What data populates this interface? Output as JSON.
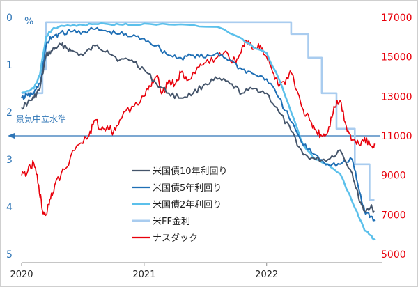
{
  "chart_data": {
    "type": "line",
    "title": "",
    "left_axis": {
      "unit_label": "%",
      "ticks": [
        "0",
        "1",
        "2",
        "3",
        "4",
        "5"
      ],
      "range": [
        0,
        5
      ],
      "inverted": true,
      "color": "#2E75B6"
    },
    "right_axis": {
      "ticks": [
        "5000",
        "7000",
        "9000",
        "11000",
        "13000",
        "15000",
        "17000"
      ],
      "range": [
        5000,
        17000
      ],
      "color": "#E8000B"
    },
    "x_axis": {
      "ticks": [
        "2020",
        "2021",
        "2022"
      ],
      "range": [
        2020.0,
        2022.9
      ]
    },
    "annotation": {
      "label": "景気中立水準",
      "value": 2.5,
      "color": "#2E75B6"
    },
    "legend_placement": "lower-center",
    "series": [
      {
        "name": "米国債10年利回り",
        "axis": "left",
        "color": "#44546A",
        "x": [
          2020.0,
          2020.05,
          2020.1,
          2020.15,
          2020.2,
          2020.25,
          2020.3,
          2020.35,
          2020.4,
          2020.5,
          2020.6,
          2020.7,
          2020.8,
          2020.9,
          2021.0,
          2021.1,
          2021.2,
          2021.3,
          2021.4,
          2021.5,
          2021.6,
          2021.7,
          2021.8,
          2021.9,
          2022.0,
          2022.1,
          2022.2,
          2022.3,
          2022.4,
          2022.5,
          2022.6,
          2022.7,
          2022.75,
          2022.8,
          2022.85,
          2022.88
        ],
        "values": [
          1.9,
          1.8,
          1.7,
          1.5,
          0.8,
          0.7,
          0.6,
          0.6,
          0.7,
          0.8,
          0.6,
          0.7,
          0.9,
          0.9,
          1.1,
          1.4,
          1.6,
          1.7,
          1.6,
          1.4,
          1.3,
          1.4,
          1.6,
          1.5,
          1.6,
          2.0,
          2.4,
          2.9,
          3.0,
          3.0,
          2.8,
          3.3,
          3.8,
          4.1,
          4.0,
          4.1
        ]
      },
      {
        "name": "米国債5年利回り",
        "axis": "left",
        "color": "#1F6FB5",
        "x": [
          2020.0,
          2020.05,
          2020.1,
          2020.15,
          2020.2,
          2020.25,
          2020.3,
          2020.4,
          2020.5,
          2020.6,
          2020.7,
          2020.8,
          2020.9,
          2021.0,
          2021.1,
          2021.2,
          2021.3,
          2021.4,
          2021.5,
          2021.6,
          2021.7,
          2021.8,
          2021.9,
          2022.0,
          2022.1,
          2022.2,
          2022.3,
          2022.4,
          2022.5,
          2022.6,
          2022.7,
          2022.75,
          2022.8,
          2022.85,
          2022.88
        ],
        "values": [
          1.7,
          1.65,
          1.6,
          1.4,
          0.6,
          0.4,
          0.35,
          0.3,
          0.3,
          0.25,
          0.3,
          0.35,
          0.4,
          0.45,
          0.6,
          0.8,
          0.85,
          0.8,
          0.85,
          0.75,
          0.9,
          1.1,
          1.2,
          1.3,
          1.7,
          2.2,
          2.7,
          2.9,
          3.1,
          3.1,
          3.0,
          3.6,
          4.1,
          4.2,
          4.3
        ]
      },
      {
        "name": "米国債2年利回り",
        "axis": "left",
        "color": "#5BC0EB",
        "x": [
          2020.0,
          2020.05,
          2020.1,
          2020.15,
          2020.2,
          2020.25,
          2020.3,
          2020.4,
          2020.5,
          2020.6,
          2020.7,
          2020.8,
          2020.9,
          2021.0,
          2021.2,
          2021.4,
          2021.6,
          2021.8,
          2021.9,
          2022.0,
          2022.1,
          2022.2,
          2022.3,
          2022.4,
          2022.5,
          2022.6,
          2022.7,
          2022.75,
          2022.8,
          2022.85,
          2022.88
        ],
        "values": [
          1.6,
          1.55,
          1.5,
          1.2,
          0.4,
          0.25,
          0.2,
          0.18,
          0.16,
          0.14,
          0.14,
          0.15,
          0.16,
          0.13,
          0.15,
          0.16,
          0.2,
          0.45,
          0.65,
          0.75,
          1.3,
          2.0,
          2.7,
          3.0,
          3.1,
          3.3,
          3.9,
          4.2,
          4.5,
          4.6,
          4.7
        ]
      },
      {
        "name": "米FF金利",
        "axis": "left",
        "color": "#A9CCEF",
        "x": [
          2020.0,
          2020.17,
          2020.17,
          2020.2,
          2020.2,
          2022.2,
          2022.2,
          2022.34,
          2022.34,
          2022.45,
          2022.45,
          2022.57,
          2022.57,
          2022.72,
          2022.72,
          2022.84,
          2022.84,
          2022.88
        ],
        "values": [
          1.6,
          1.6,
          1.1,
          1.1,
          0.1,
          0.1,
          0.35,
          0.35,
          0.85,
          0.85,
          1.6,
          1.6,
          2.35,
          2.35,
          3.1,
          3.1,
          3.85,
          3.85
        ]
      },
      {
        "name": "ナスダック",
        "axis": "right",
        "color": "#E8000B",
        "x": [
          2020.0,
          2020.05,
          2020.1,
          2020.14,
          2020.17,
          2020.2,
          2020.23,
          2020.27,
          2020.35,
          2020.45,
          2020.55,
          2020.6,
          2020.65,
          2020.7,
          2020.75,
          2020.8,
          2020.9,
          2021.0,
          2021.05,
          2021.1,
          2021.15,
          2021.2,
          2021.25,
          2021.3,
          2021.35,
          2021.45,
          2021.5,
          2021.6,
          2021.65,
          2021.75,
          2021.8,
          2021.85,
          2021.9,
          2021.95,
          2022.0,
          2022.05,
          2022.1,
          2022.15,
          2022.2,
          2022.3,
          2022.35,
          2022.4,
          2022.45,
          2022.5,
          2022.55,
          2022.6,
          2022.65,
          2022.7,
          2022.75,
          2022.8,
          2022.85,
          2022.88
        ],
        "values": [
          9000,
          9200,
          9600,
          8500,
          7200,
          7000,
          7800,
          8500,
          9300,
          10500,
          11000,
          11800,
          11300,
          11500,
          11200,
          11800,
          12500,
          13000,
          13500,
          14000,
          13200,
          13800,
          13600,
          14200,
          13800,
          14500,
          14700,
          15000,
          15200,
          14700,
          15500,
          15800,
          15400,
          15600,
          15000,
          14200,
          13500,
          13600,
          14200,
          12300,
          11800,
          11300,
          11000,
          11200,
          12500,
          12800,
          11500,
          10800,
          10600,
          10900,
          10500,
          10600
        ]
      }
    ]
  }
}
